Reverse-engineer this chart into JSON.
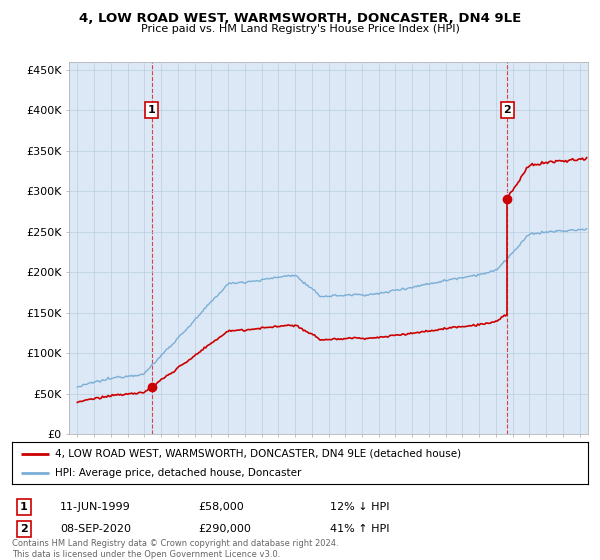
{
  "title": "4, LOW ROAD WEST, WARMSWORTH, DONCASTER, DN4 9LE",
  "subtitle": "Price paid vs. HM Land Registry's House Price Index (HPI)",
  "legend_line1": "4, LOW ROAD WEST, WARMSWORTH, DONCASTER, DN4 9LE (detached house)",
  "legend_line2": "HPI: Average price, detached house, Doncaster",
  "annotation1_label": "1",
  "annotation1_date": "11-JUN-1999",
  "annotation1_price": "£58,000",
  "annotation1_hpi": "12% ↓ HPI",
  "annotation2_label": "2",
  "annotation2_date": "08-SEP-2020",
  "annotation2_price": "£290,000",
  "annotation2_hpi": "41% ↑ HPI",
  "footer": "Contains HM Land Registry data © Crown copyright and database right 2024.\nThis data is licensed under the Open Government Licence v3.0.",
  "sale1_x": 1999.44,
  "sale1_y": 58000,
  "sale2_x": 2020.69,
  "sale2_y": 290000,
  "price_color": "#cc0000",
  "hpi_color": "#7aaed6",
  "annotation_color": "#cc0000",
  "vline_color": "#cc0000",
  "background_color": "#ffffff",
  "plot_bg_color": "#dce8f5",
  "grid_color": "#b8cfe0",
  "ylim": [
    0,
    460000
  ],
  "xlim_start": 1994.5,
  "xlim_end": 2025.5
}
